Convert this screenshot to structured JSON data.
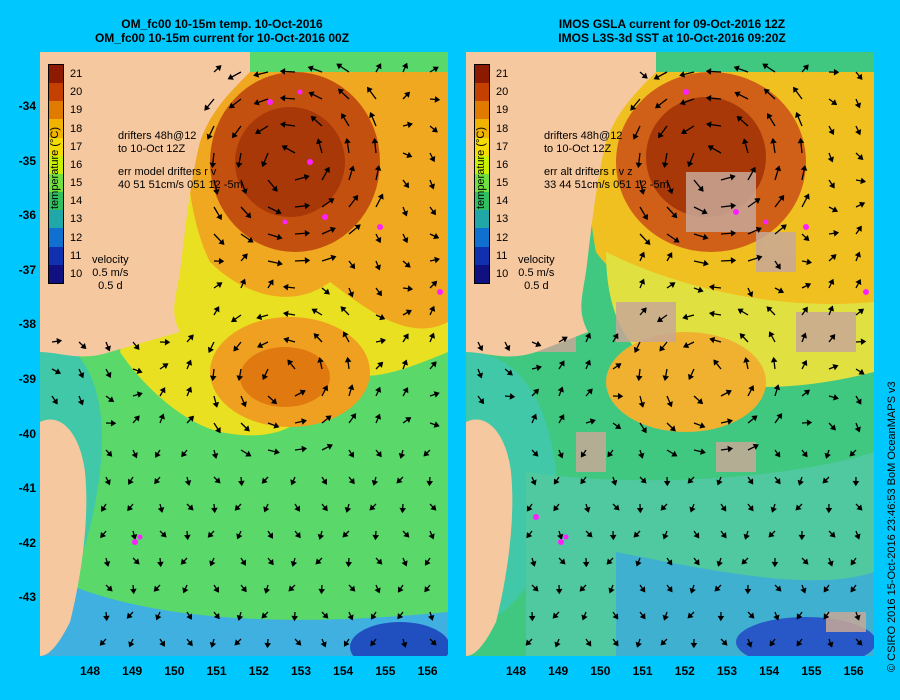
{
  "left_panel": {
    "title_line1": "OM_fc00 10-15m temp. 10-Oct-2016",
    "title_line2": "OM_fc00 10-15m current for 10-Oct-2016 00Z",
    "drifters_line1": "drifters 48h@12",
    "drifters_line2": "to 10-Oct 12Z",
    "err_line1": "err model drifters r v",
    "err_line2": "40 51 51cm/s 051 12 -5m",
    "velocity_label": "velocity",
    "velocity_scale": "0.5 m/s",
    "velocity_time": "0.5 d"
  },
  "right_panel": {
    "title_line1": "IMOS GSLA current for 09-Oct-2016 12Z",
    "title_line2": "IMOS L3S-3d SST at 10-Oct-2016 09:20Z",
    "drifters_line1": "drifters 48h@12",
    "drifters_line2": "to 10-Oct 12Z",
    "err_line1": "err alt drifters r v z",
    "err_line2": "33 44 51cm/s 051 12 -5m",
    "velocity_label": "velocity",
    "velocity_scale": "0.5 m/s",
    "velocity_time": "0.5 d"
  },
  "colorbar": {
    "title": "temperature (°C)",
    "labels": [
      "21",
      "20",
      "19",
      "18",
      "17",
      "16",
      "15",
      "14",
      "13",
      "12",
      "11",
      "10"
    ],
    "colors": [
      "#8b1a00",
      "#c44000",
      "#e07a00",
      "#f0b400",
      "#f5dc00",
      "#c8f000",
      "#70e040",
      "#30c060",
      "#20a8a8",
      "#1070d0",
      "#1030b0",
      "#101080"
    ]
  },
  "y_ticks": [
    "-34",
    "-35",
    "-36",
    "-37",
    "-38",
    "-39",
    "-40",
    "-41",
    "-42",
    "-43"
  ],
  "x_ticks": [
    "148",
    "149",
    "150",
    "151",
    "152",
    "153",
    "154",
    "155",
    "156"
  ],
  "credit": "© CSIRO 2016  15-Oct-2016 23:46:53 BoM OceanMAPS v3",
  "colors": {
    "background": "#00c8ff",
    "land": "#f5c8a0",
    "warm_core": "#b84010",
    "mid": "#f0b020",
    "cool": "#50d050",
    "shelf": "#30c0a0",
    "cloud": "#c8a898",
    "drifter": "#ff20ff"
  }
}
